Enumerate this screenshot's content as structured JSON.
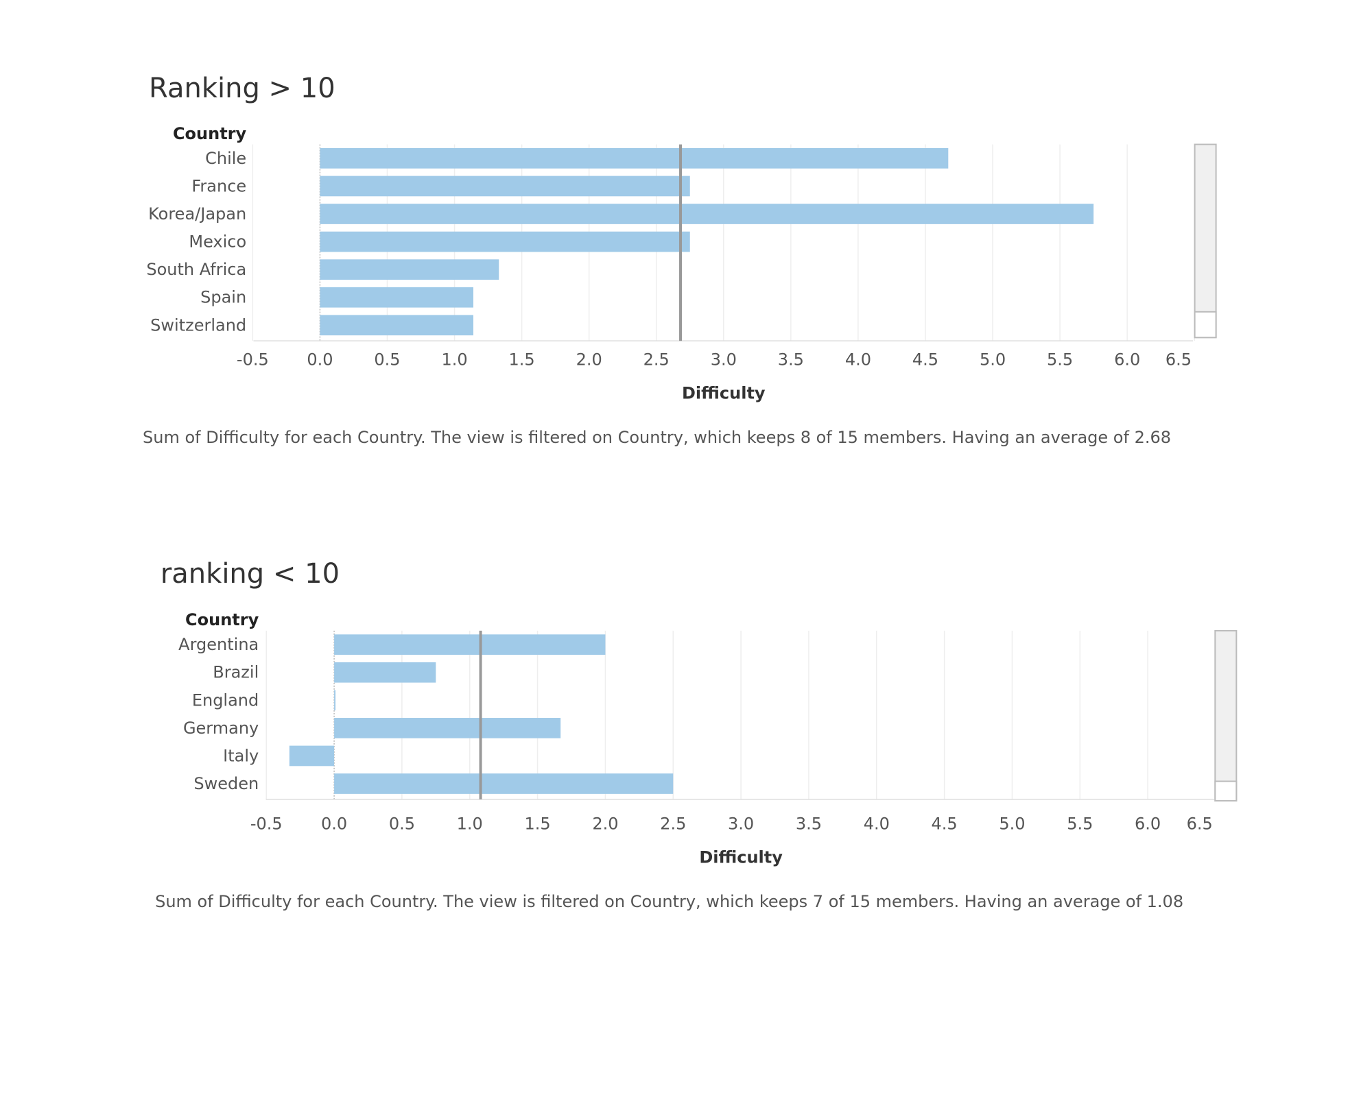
{
  "chart_data": [
    {
      "type": "bar",
      "orientation": "horizontal",
      "title": "Ranking > 10",
      "row_header": "Country",
      "categories": [
        "Chile",
        "France",
        "Korea/Japan",
        "Mexico",
        "South Africa",
        "Spain",
        "Switzerland"
      ],
      "values": [
        4.67,
        2.75,
        5.75,
        2.75,
        1.33,
        1.14,
        1.14
      ],
      "xlabel": "Difficulty",
      "ylabel": "",
      "xlim": [
        -0.5,
        6.5
      ],
      "ticks": [
        "-0.5",
        "0.0",
        "0.5",
        "1.0",
        "1.5",
        "2.0",
        "2.5",
        "3.0",
        "3.5",
        "4.0",
        "4.5",
        "5.0",
        "5.5",
        "6.0",
        "6.5"
      ],
      "reference_line": 2.68,
      "grid": true,
      "bar_color": "#a0cae8",
      "caption": "Sum of Difficulty for each Country. The view is filtered on Country, which keeps 8 of 15 members. Having an average of  2.68"
    },
    {
      "type": "bar",
      "orientation": "horizontal",
      "title": "ranking < 10",
      "row_header": "Country",
      "categories": [
        "Argentina",
        "Brazil",
        "England",
        "Germany",
        "Italy",
        "Sweden"
      ],
      "values": [
        2.0,
        0.75,
        0.0,
        1.67,
        -0.33,
        2.5
      ],
      "xlabel": "Difficulty",
      "ylabel": "",
      "xlim": [
        -0.5,
        6.5
      ],
      "ticks": [
        "-0.5",
        "0.0",
        "0.5",
        "1.0",
        "1.5",
        "2.0",
        "2.5",
        "3.0",
        "3.5",
        "4.0",
        "4.5",
        "5.0",
        "5.5",
        "6.0",
        "6.5"
      ],
      "reference_line": 1.08,
      "grid": true,
      "bar_color": "#a0cae8",
      "caption": "Sum of Difficulty for each Country. The view is filtered on Country, which keeps 7 of 15 members. Having an average of 1.08"
    }
  ],
  "colors": {
    "bar": "#a0cae8",
    "reference_line": "#999999",
    "grid": "#eeeeee",
    "scrollbar_track": "#f0f0f0",
    "scrollbar_border": "#bbbbbb"
  }
}
